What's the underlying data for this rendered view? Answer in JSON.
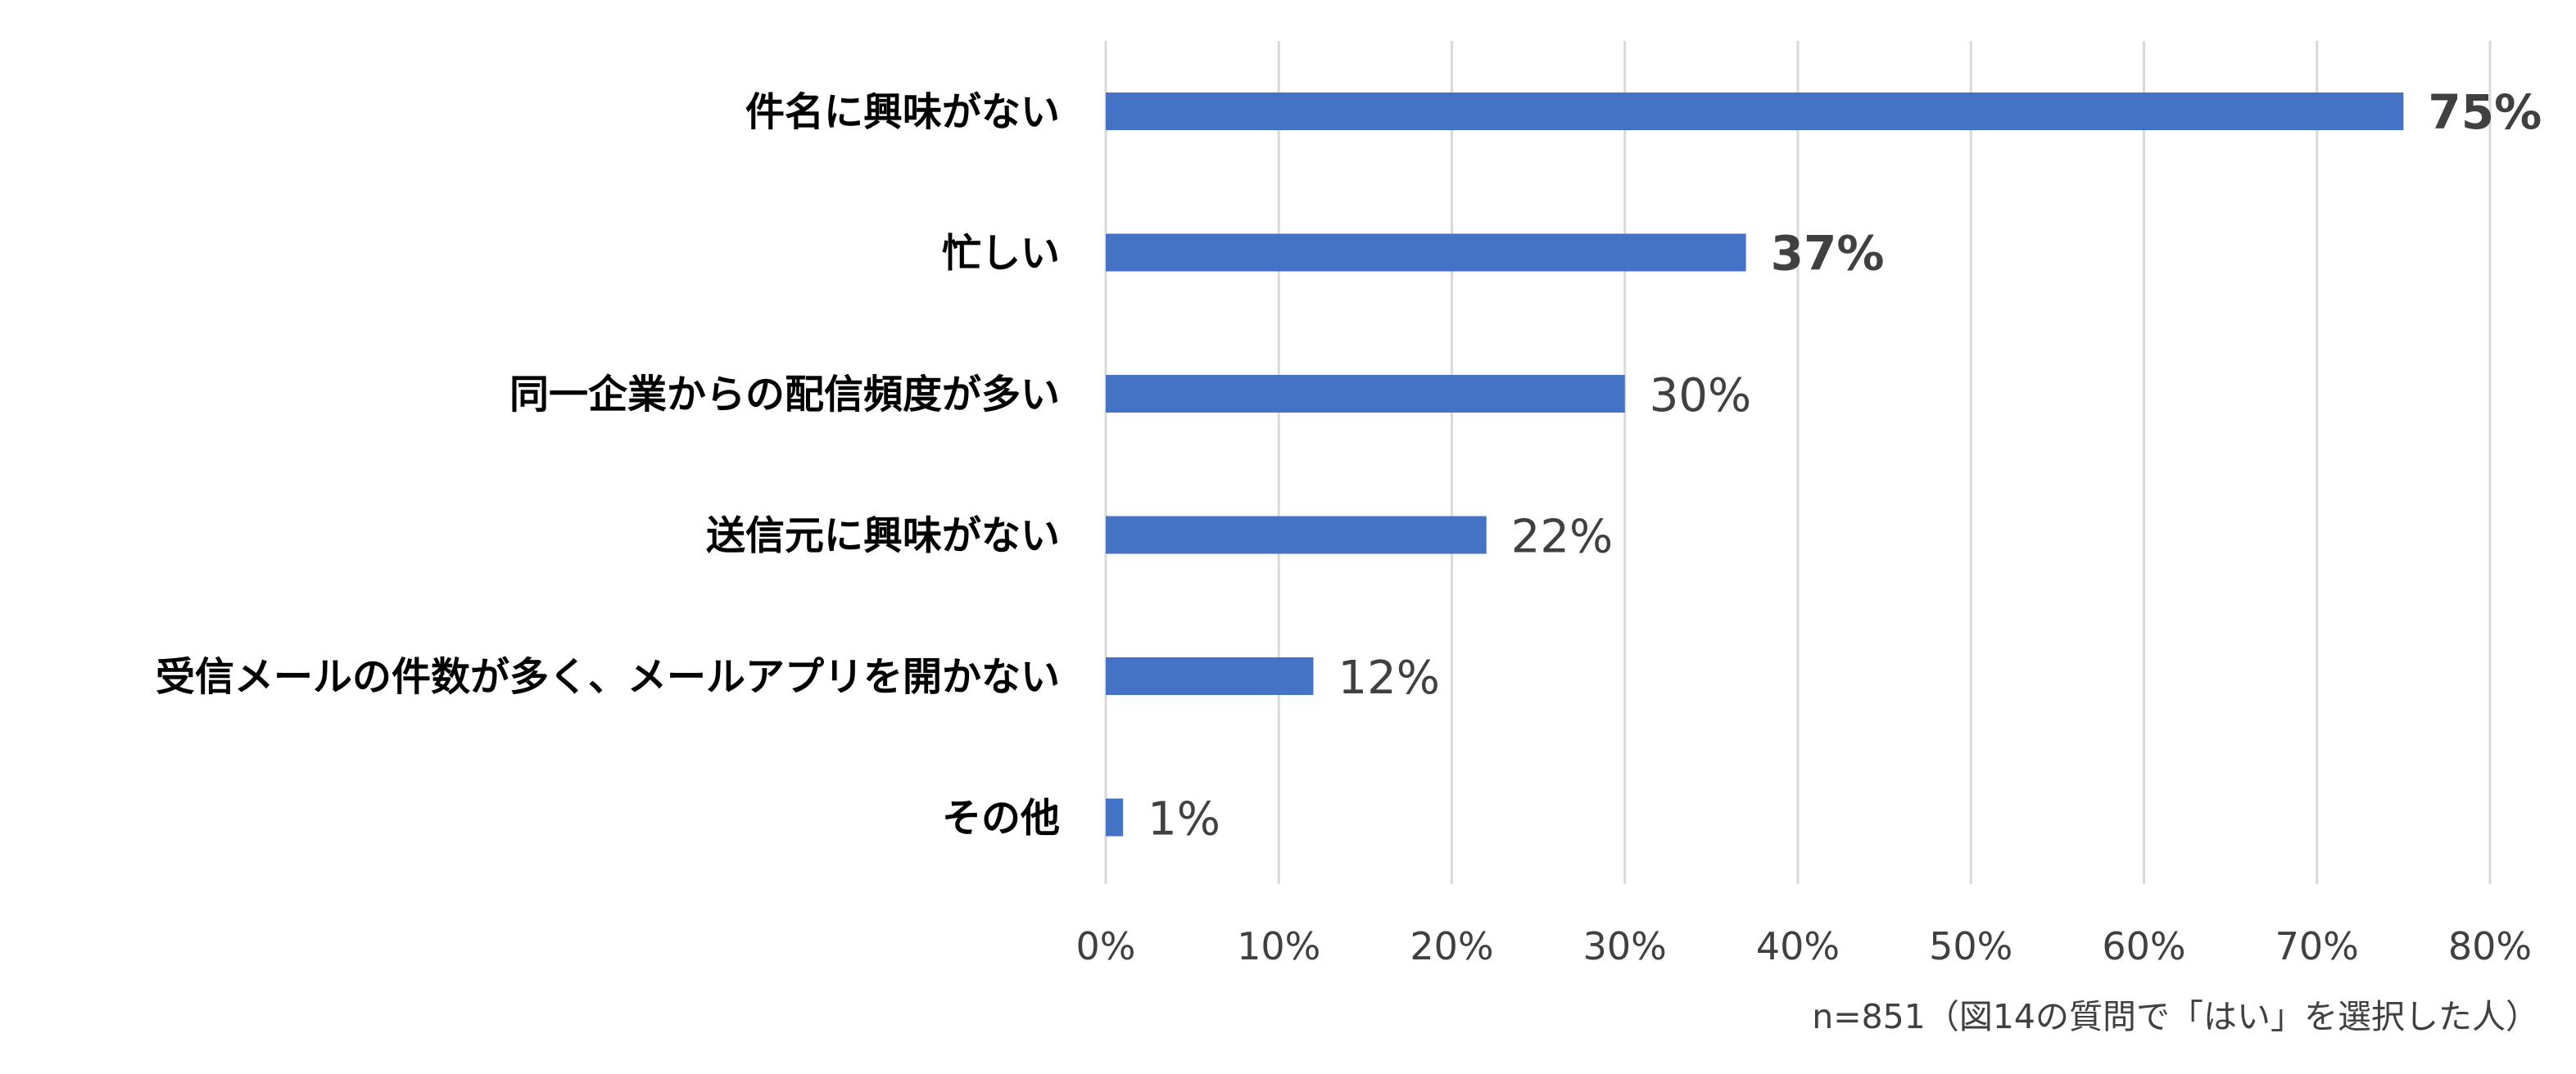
{
  "chart_data": {
    "type": "bar",
    "orientation": "horizontal",
    "categories": [
      "件名に興味がない",
      "忙しい",
      "同一企業からの配信頻度が多い",
      "送信元に興味がない",
      "受信メールの件数が多く、メールアプリを開かない",
      "その他"
    ],
    "values": [
      75,
      37,
      30,
      22,
      12,
      1
    ],
    "value_labels": [
      "75%",
      "37%",
      "30%",
      "22%",
      "12%",
      "1%"
    ],
    "emphasized_labels": [
      true,
      true,
      false,
      false,
      false,
      false
    ],
    "xlim": [
      0,
      80
    ],
    "xticks": [
      0,
      10,
      20,
      30,
      40,
      50,
      60,
      70,
      80
    ],
    "xtick_labels": [
      "0%",
      "10%",
      "20%",
      "30%",
      "40%",
      "50%",
      "60%",
      "70%",
      "80%"
    ],
    "grid": true,
    "bar_color": "#4472C4",
    "grid_color": "#D9D9D9",
    "category_label_color": "#000000",
    "value_label_color": "#404040",
    "tick_label_color": "#404040",
    "footnote": "n=851（図14の質問で「はい」を選択した人）"
  }
}
